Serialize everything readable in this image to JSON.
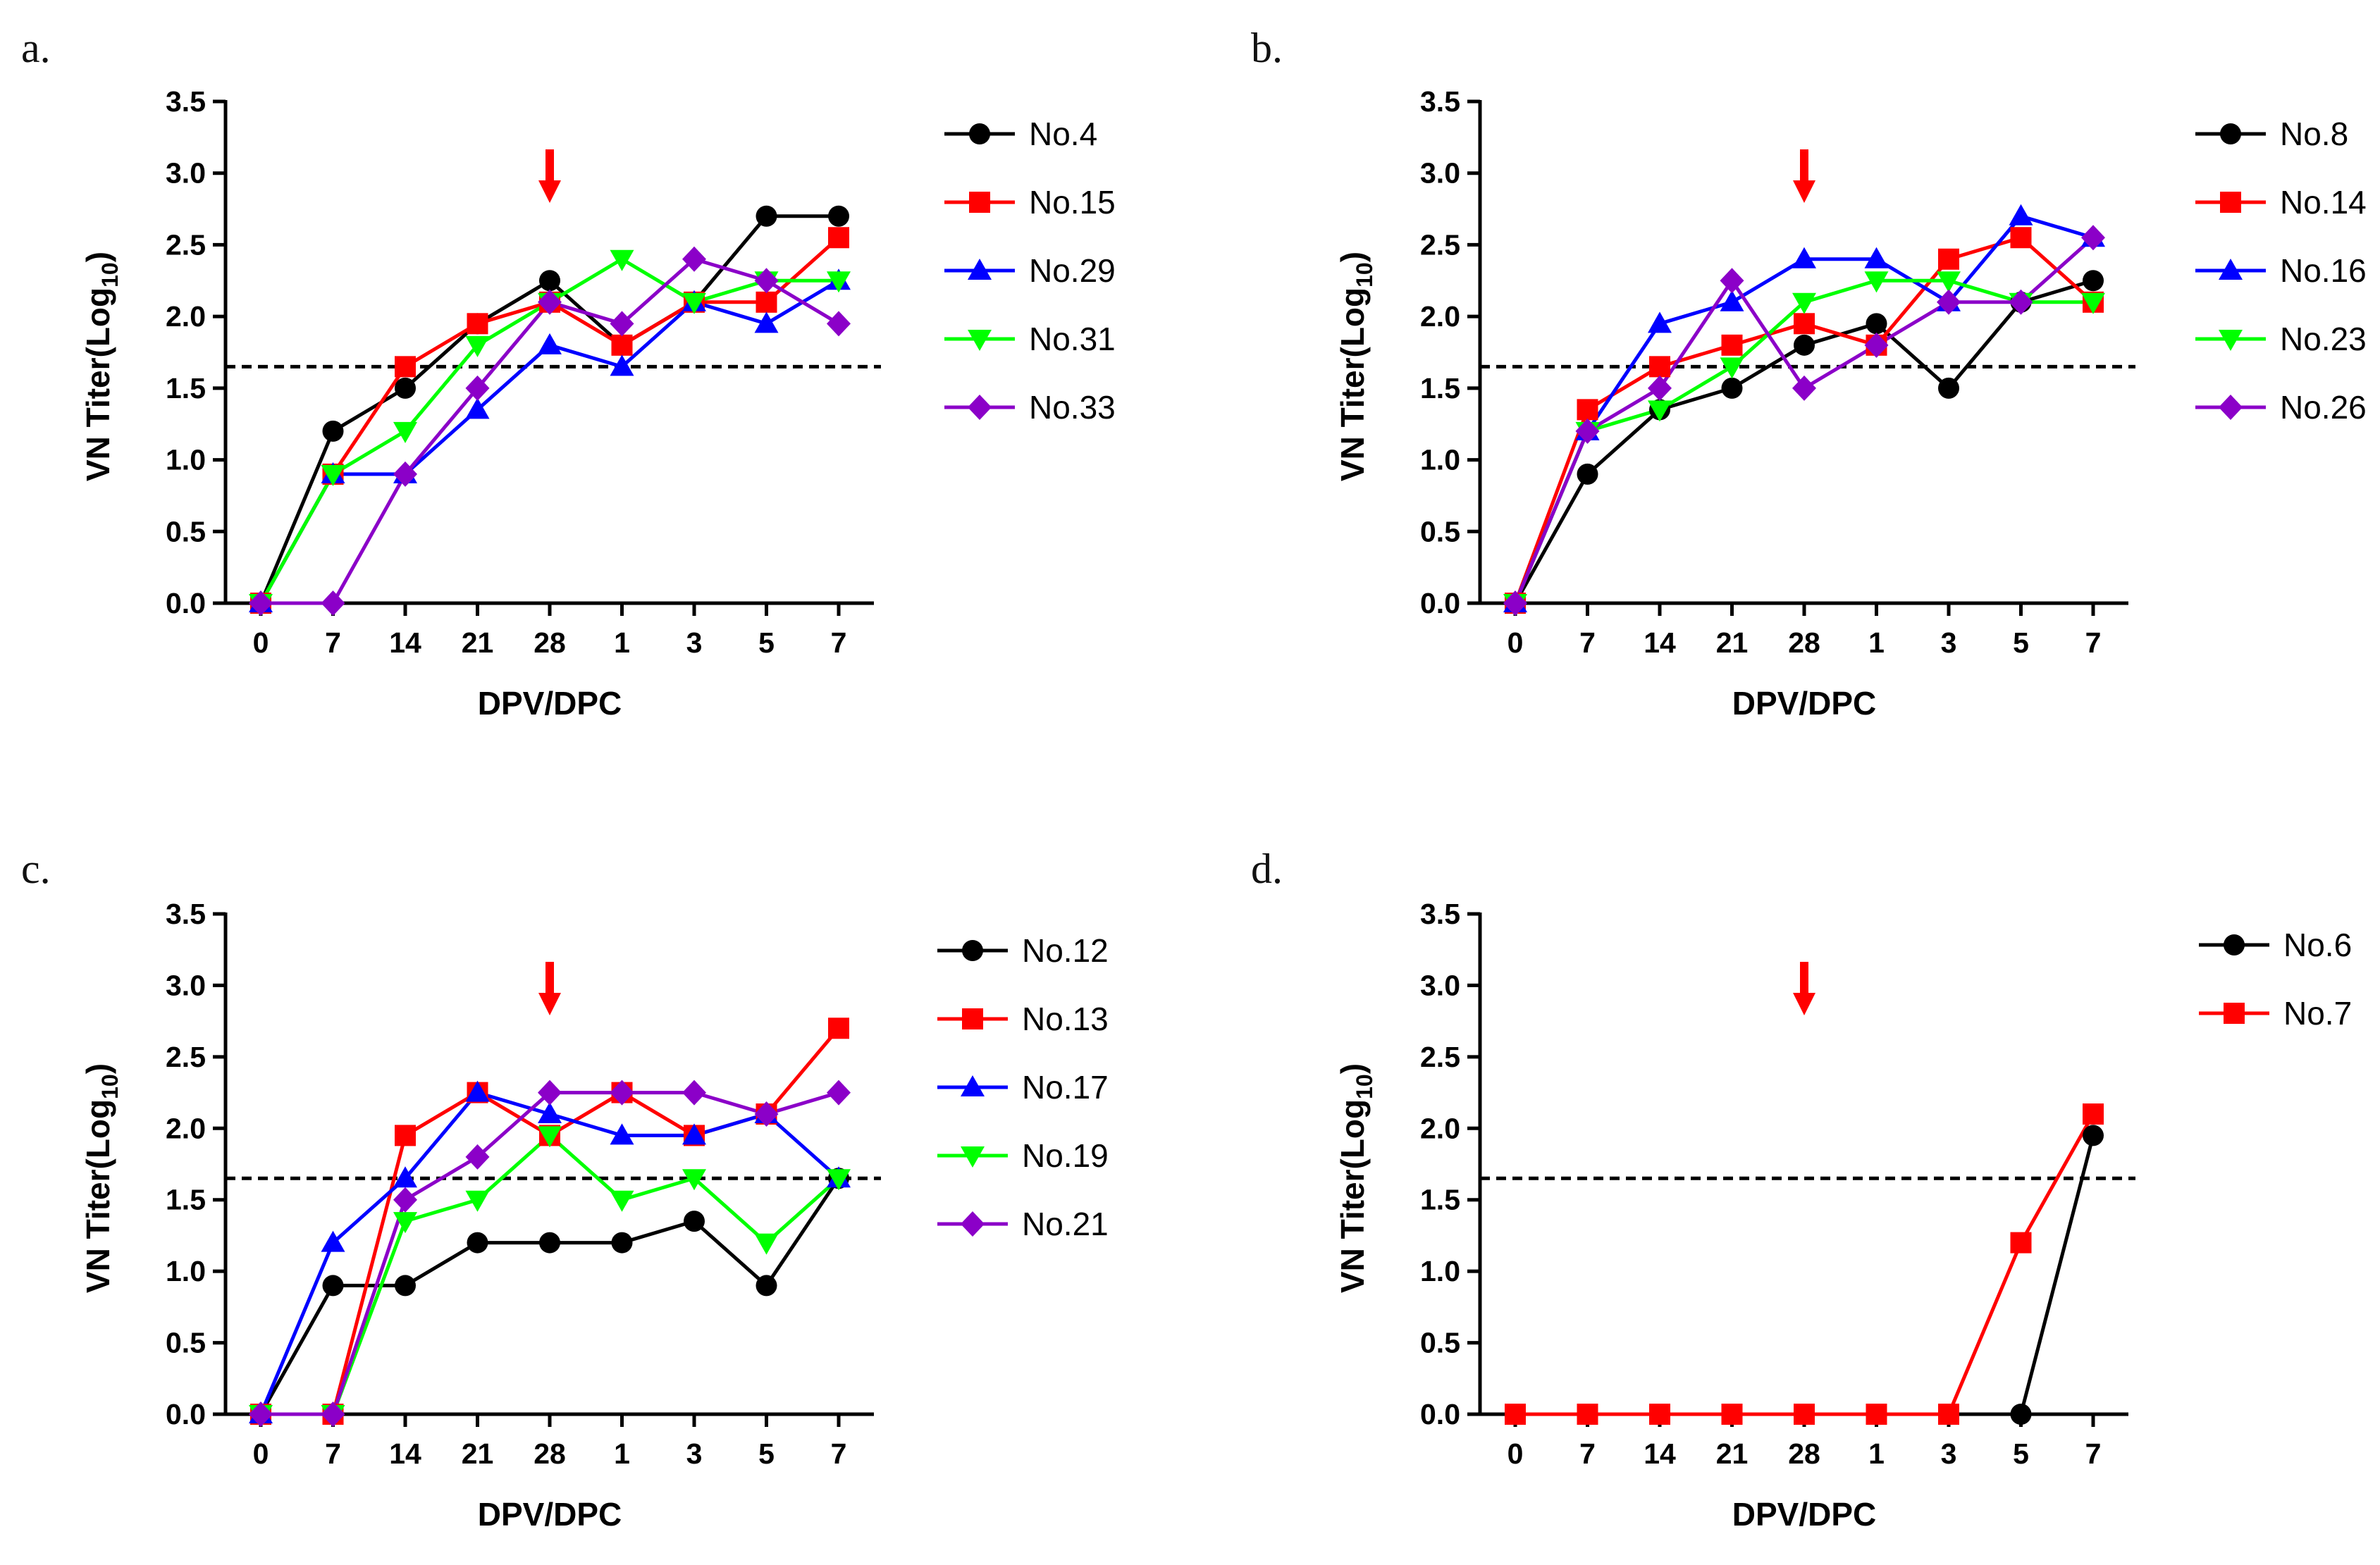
{
  "chart_data": [
    {
      "type": "line",
      "title": "a.",
      "xlabel": "DPV/DPC",
      "ylabel": "VN Titer(Log",
      "ylabel_sub": "10",
      "ylabel_close": ")",
      "ylim": [
        0,
        3.5
      ],
      "yticks": [
        "0.0",
        "0.5",
        "1.0",
        "1.5",
        "2.0",
        "2.5",
        "3.0",
        "3.5"
      ],
      "categories": [
        "0",
        "7",
        "14",
        "21",
        "28",
        "1",
        "3",
        "5",
        "7"
      ],
      "threshold": 1.65,
      "arrow_at": "28",
      "series": [
        {
          "name": "No.4",
          "color": "#000000",
          "marker": "circle",
          "values": [
            0,
            1.2,
            1.5,
            1.95,
            2.25,
            1.8,
            2.1,
            2.7,
            2.7
          ]
        },
        {
          "name": "No.15",
          "color": "#ff0000",
          "marker": "square",
          "values": [
            0,
            0.9,
            1.65,
            1.95,
            2.1,
            1.8,
            2.1,
            2.1,
            2.55
          ]
        },
        {
          "name": "No.29",
          "color": "#0000ff",
          "marker": "triangle-up",
          "values": [
            0,
            0.9,
            0.9,
            1.35,
            1.8,
            1.65,
            2.1,
            1.95,
            2.25
          ]
        },
        {
          "name": "No.31",
          "color": "#00ff00",
          "marker": "triangle-down",
          "values": [
            0,
            0.9,
            1.2,
            1.8,
            2.1,
            2.4,
            2.1,
            2.25,
            2.25
          ]
        },
        {
          "name": "No.33",
          "color": "#8b00c8",
          "marker": "diamond",
          "values": [
            0,
            0,
            0.9,
            1.5,
            2.1,
            1.95,
            2.4,
            2.25,
            1.95
          ]
        }
      ]
    },
    {
      "type": "line",
      "title": "b.",
      "xlabel": "DPV/DPC",
      "ylabel": "VN Titer(Log",
      "ylabel_sub": "10",
      "ylabel_close": ")",
      "ylim": [
        0,
        3.5
      ],
      "yticks": [
        "0.0",
        "0.5",
        "1.0",
        "1.5",
        "2.0",
        "2.5",
        "3.0",
        "3.5"
      ],
      "categories": [
        "0",
        "7",
        "14",
        "21",
        "28",
        "1",
        "3",
        "5",
        "7"
      ],
      "threshold": 1.65,
      "arrow_at": "28",
      "series": [
        {
          "name": "No.8",
          "color": "#000000",
          "marker": "circle",
          "values": [
            0,
            0.9,
            1.35,
            1.5,
            1.8,
            1.95,
            1.5,
            2.1,
            2.25
          ]
        },
        {
          "name": "No.14",
          "color": "#ff0000",
          "marker": "square",
          "values": [
            0,
            1.35,
            1.65,
            1.8,
            1.95,
            1.8,
            2.4,
            2.55,
            2.1
          ]
        },
        {
          "name": "No.16",
          "color": "#0000ff",
          "marker": "triangle-up",
          "values": [
            0,
            1.2,
            1.95,
            2.1,
            2.4,
            2.4,
            2.1,
            2.7,
            2.55
          ]
        },
        {
          "name": "No.23",
          "color": "#00ff00",
          "marker": "triangle-down",
          "values": [
            0,
            1.2,
            1.35,
            1.65,
            2.1,
            2.25,
            2.25,
            2.1,
            2.1
          ]
        },
        {
          "name": "No.26",
          "color": "#8b00c8",
          "marker": "diamond",
          "values": [
            0,
            1.2,
            1.5,
            2.25,
            1.5,
            1.8,
            2.1,
            2.1,
            2.55
          ]
        }
      ]
    },
    {
      "type": "line",
      "title": "c.",
      "xlabel": "DPV/DPC",
      "ylabel": "VN Titer(Log",
      "ylabel_sub": "10",
      "ylabel_close": ")",
      "ylim": [
        0,
        3.5
      ],
      "yticks": [
        "0.0",
        "0.5",
        "1.0",
        "1.5",
        "2.0",
        "2.5",
        "3.0",
        "3.5"
      ],
      "categories": [
        "0",
        "7",
        "14",
        "21",
        "28",
        "1",
        "3",
        "5",
        "7"
      ],
      "threshold": 1.65,
      "arrow_at": "28",
      "series": [
        {
          "name": "No.12",
          "color": "#000000",
          "marker": "circle",
          "values": [
            0,
            0.9,
            0.9,
            1.2,
            1.2,
            1.2,
            1.35,
            0.9,
            1.65
          ]
        },
        {
          "name": "No.13",
          "color": "#ff0000",
          "marker": "square",
          "values": [
            0,
            0,
            1.95,
            2.25,
            1.95,
            2.25,
            1.95,
            2.1,
            2.7
          ]
        },
        {
          "name": "No.17",
          "color": "#0000ff",
          "marker": "triangle-up",
          "values": [
            0,
            1.2,
            1.65,
            2.25,
            2.1,
            1.95,
            1.95,
            2.1,
            1.65
          ]
        },
        {
          "name": "No.19",
          "color": "#00ff00",
          "marker": "triangle-down",
          "values": [
            0,
            0,
            1.35,
            1.5,
            1.95,
            1.5,
            1.65,
            1.2,
            1.65
          ]
        },
        {
          "name": "No.21",
          "color": "#8b00c8",
          "marker": "diamond",
          "values": [
            0,
            0,
            1.5,
            1.8,
            2.25,
            2.25,
            2.25,
            2.1,
            2.25
          ]
        }
      ]
    },
    {
      "type": "line",
      "title": "d.",
      "xlabel": "DPV/DPC",
      "ylabel": "VN Titer(Log",
      "ylabel_sub": "10",
      "ylabel_close": ")",
      "ylim": [
        0,
        3.5
      ],
      "yticks": [
        "0.0",
        "0.5",
        "1.0",
        "1.5",
        "2.0",
        "2.5",
        "3.0",
        "3.5"
      ],
      "categories": [
        "0",
        "7",
        "14",
        "21",
        "28",
        "1",
        "3",
        "5",
        "7"
      ],
      "threshold": 1.65,
      "arrow_at": "28",
      "series": [
        {
          "name": "No.6",
          "color": "#000000",
          "marker": "circle",
          "values": [
            0,
            0,
            0,
            0,
            0,
            0,
            0,
            0,
            1.95
          ]
        },
        {
          "name": "No.7",
          "color": "#ff0000",
          "marker": "square",
          "values": [
            0,
            0,
            0,
            0,
            0,
            0,
            0,
            1.2,
            2.1
          ]
        }
      ]
    }
  ]
}
